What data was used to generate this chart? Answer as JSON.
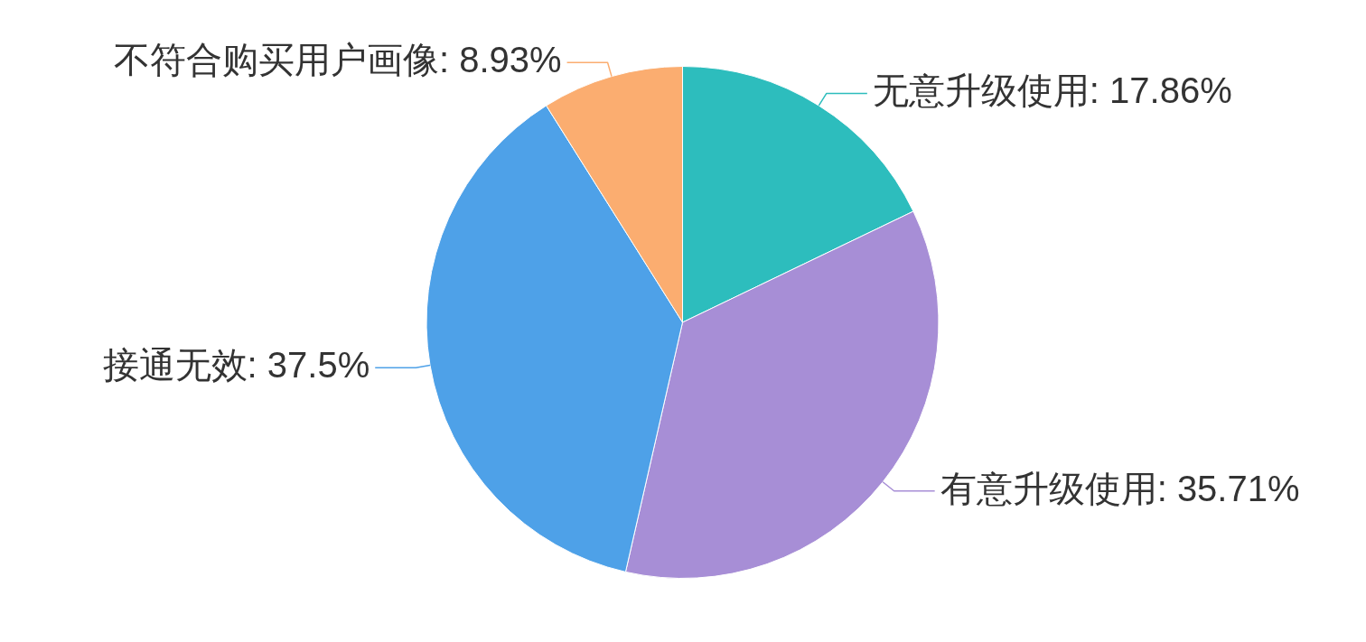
{
  "chart_data": {
    "type": "pie",
    "categories": [
      "无意升级使用",
      "有意升级使用",
      "接通无效",
      "不符合购买用户画像"
    ],
    "values": [
      17.86,
      35.71,
      37.5,
      8.93
    ],
    "colors": [
      "#2dbdbd",
      "#a78ed6",
      "#4ea1e8",
      "#fbad70"
    ],
    "value_labels": [
      "17.86%",
      "35.71%",
      "37.5%",
      "8.93%"
    ],
    "legend": false
  }
}
